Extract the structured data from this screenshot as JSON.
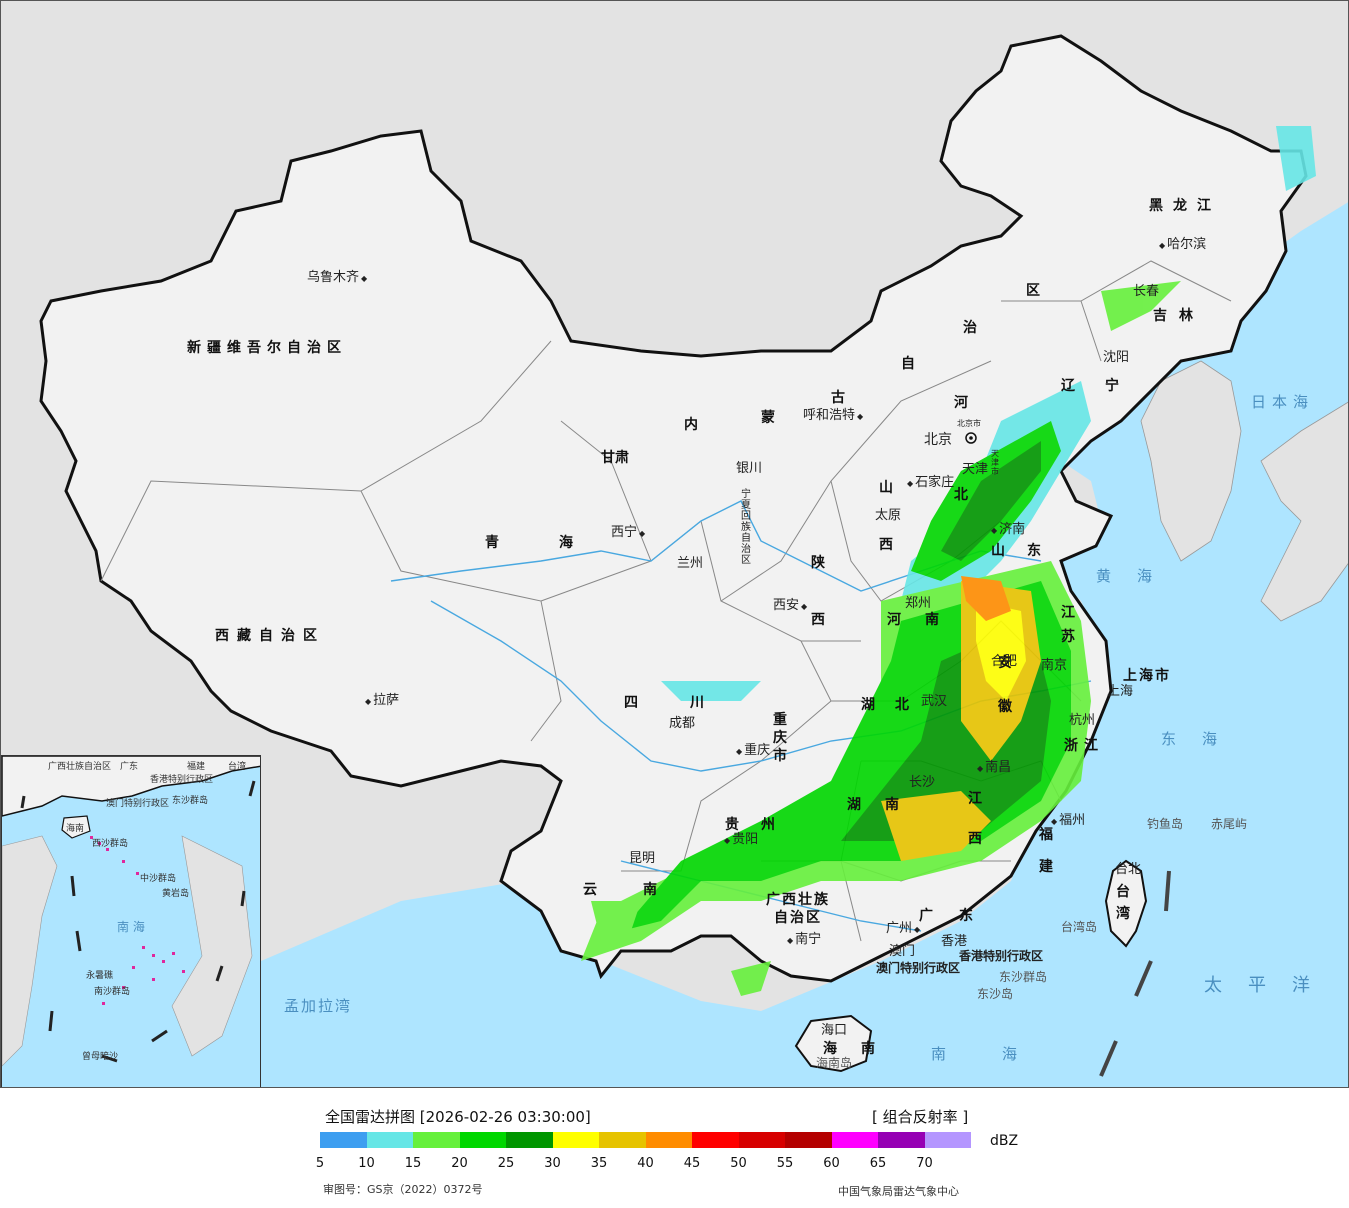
{
  "title": "全国雷达拼图 [2026-02-26 03:30:00]",
  "product": "[ 组合反射率 ]",
  "unit": "dBZ",
  "approval": "审图号：GS京（2022）0372号",
  "source": "中国气象局雷达气象中心",
  "colors": {
    "sea": "#aee5ff",
    "land_china": "#f2f2f2",
    "land_foreign": "#e3e3e3",
    "border": "#111111",
    "rivers": "#49a8e0"
  },
  "colorbar": {
    "colors": [
      "#3d9ef0",
      "#66e6e6",
      "#66f03c",
      "#00d700",
      "#009600",
      "#ffff00",
      "#e6c300",
      "#ff8c00",
      "#ff0000",
      "#d70000",
      "#b40000",
      "#ff00ff",
      "#9600b4",
      "#b496ff"
    ],
    "ticks": [
      "5",
      "10",
      "15",
      "20",
      "25",
      "30",
      "35",
      "40",
      "45",
      "50",
      "55",
      "60",
      "65",
      "70"
    ]
  },
  "provinces": {
    "xinjiang": "新疆维吾尔自治区",
    "xizang": "西藏自治区",
    "qinghai": "青海",
    "gansu": "甘肃",
    "neimenggu_1": "内",
    "neimenggu_2": "蒙",
    "neimenggu_3": "古",
    "neimenggu_4": "自",
    "neimenggu_5": "治",
    "neimenggu_6": "区",
    "heilongjiang": "黑龙江",
    "jilin": "吉林",
    "liaoning": "辽宁",
    "hebei_1": "河",
    "hebei_2": "北",
    "shanxi_1": "山",
    "shanxi_2": "西",
    "shaanxi_1": "陕",
    "shaanxi_2": "西",
    "ningxia": "宁夏回族自治区",
    "shandong": "山东",
    "henan": "河南",
    "jiangsu": "江苏",
    "anhui": "安徽",
    "shanghai": "上海市",
    "zhejiang": "浙江",
    "hubei": "湖北",
    "hunan": "湖南",
    "jiangxi": "江西",
    "fujian": "福建",
    "sichuan": "四川",
    "chongqing": "重庆市",
    "guizhou": "贵州",
    "yunnan": "云南",
    "guangxi_1": "广西壮族",
    "guangxi_2": "自治区",
    "guangdong": "广东",
    "hainan": "海南",
    "taiwan": "台湾",
    "hongkong": "香港特别行政区",
    "macau": "澳门特别行政区",
    "beijing": "北京市",
    "tianjin": "天津市"
  },
  "cities": {
    "urumqi": "乌鲁木齐",
    "lhasa": "拉萨",
    "xining": "西宁",
    "lanzhou": "兰州",
    "yinchuan": "银川",
    "hohhot": "呼和浩特",
    "harbin": "哈尔滨",
    "changchun": "长春",
    "shenyang": "沈阳",
    "beijing": "北京",
    "tianjin": "天津",
    "shijiazhuang": "石家庄",
    "taiyuan": "太原",
    "jinan": "济南",
    "zhengzhou": "郑州",
    "xian": "西安",
    "hefei": "合肥",
    "nanjing": "南京",
    "shanghai": "上海",
    "hangzhou": "杭州",
    "wuhan": "武汉",
    "changsha": "长沙",
    "nanchang": "南昌",
    "fuzhou": "福州",
    "chengdu": "成都",
    "chongqing": "重庆",
    "guiyang": "贵阳",
    "kunming": "昆明",
    "nanning": "南宁",
    "guangzhou": "广州",
    "macau": "澳门",
    "hongkong": "香港",
    "haikou": "海口",
    "taipei": "台北"
  },
  "seas": {
    "japan_sea": "日本海",
    "yellow_sea": "黄海",
    "east_sea": "东海",
    "pacific": "太平洋",
    "south_sea": "南海",
    "bengal": "孟加拉湾"
  },
  "islands": {
    "diaoyu": "钓鱼岛",
    "chiwei": "赤尾屿",
    "taiwan_island": "台湾岛",
    "dongsha_islands": "东沙群岛",
    "dongsha": "东沙岛",
    "hainan_island": "海南岛"
  },
  "inset": {
    "guangxi": "广西壮族自治区",
    "guangdong": "广东",
    "fujian": "福建",
    "taiwan": "台湾",
    "hk": "香港特别行政区",
    "macau": "澳门特别行政区",
    "dongsha": "东沙群岛",
    "hainan": "海南",
    "xisha": "西沙群岛",
    "zhongsha": "中沙群岛",
    "huangyan": "黄岩岛",
    "nansha": "南沙群岛",
    "sea": "南 海",
    "zengmu": "曾母暗沙",
    "yongshu": "永暑礁"
  }
}
